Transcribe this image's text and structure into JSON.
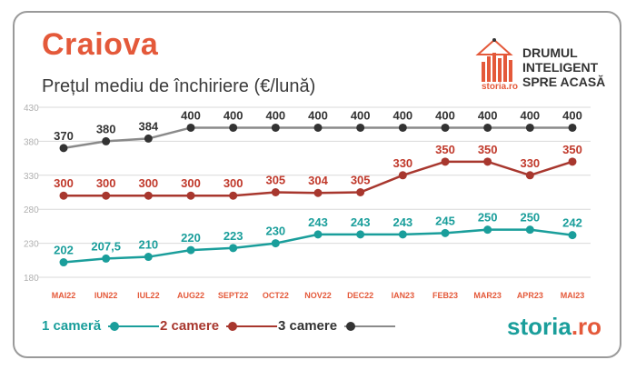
{
  "header": {
    "title": "Craiova",
    "subtitle": "Prețul mediu de închiriere (€/lună)"
  },
  "brand": {
    "tagline_1": "DRUMUL",
    "tagline_2": "INTELIGENT",
    "tagline_3": "SPRE ACASĂ",
    "small_logo": "storia.ro"
  },
  "footer": {
    "logo_main": "storia",
    "logo_ext": ".ro"
  },
  "colors": {
    "accent": "#e4593a",
    "teal": "#1a9e9b",
    "red_series": "#a8372e",
    "dark_series": "#333333",
    "grid": "#d9d9d9"
  },
  "chart_data": {
    "type": "line",
    "categories": [
      "MAI22",
      "IUN22",
      "IUL22",
      "AUG22",
      "SEPT22",
      "OCT22",
      "NOV22",
      "DEC22",
      "IAN23",
      "FEB23",
      "MAR23",
      "APR23",
      "MAI23"
    ],
    "ylim": [
      180,
      430
    ],
    "yticks": [
      "180",
      "230",
      "280",
      "330",
      "380",
      "430"
    ],
    "ytick_values": [
      180,
      230,
      280,
      330,
      380,
      430
    ],
    "grid": true,
    "legend_position": "bottom-left",
    "series": [
      {
        "name": "1 cameră",
        "values": [
          202,
          207.5,
          210,
          220,
          223,
          230,
          243,
          243,
          243,
          245,
          250,
          250,
          242
        ],
        "labels": [
          "202",
          "207,5",
          "210",
          "220",
          "223",
          "230",
          "243",
          "243",
          "243",
          "245",
          "250",
          "250",
          "242"
        ]
      },
      {
        "name": "2 camere",
        "values": [
          300,
          300,
          300,
          300,
          300,
          305,
          304,
          305,
          330,
          350,
          350,
          330,
          350
        ],
        "labels": [
          "300",
          "300",
          "300",
          "300",
          "300",
          "305",
          "304",
          "305",
          "330",
          "350",
          "350",
          "330",
          "350"
        ]
      },
      {
        "name": "3 camere",
        "values": [
          370,
          380,
          384,
          400,
          400,
          400,
          400,
          400,
          400,
          400,
          400,
          400,
          400
        ],
        "labels": [
          "370",
          "380",
          "384",
          "400",
          "400",
          "400",
          "400",
          "400",
          "400",
          "400",
          "400",
          "400",
          "400"
        ]
      }
    ]
  }
}
